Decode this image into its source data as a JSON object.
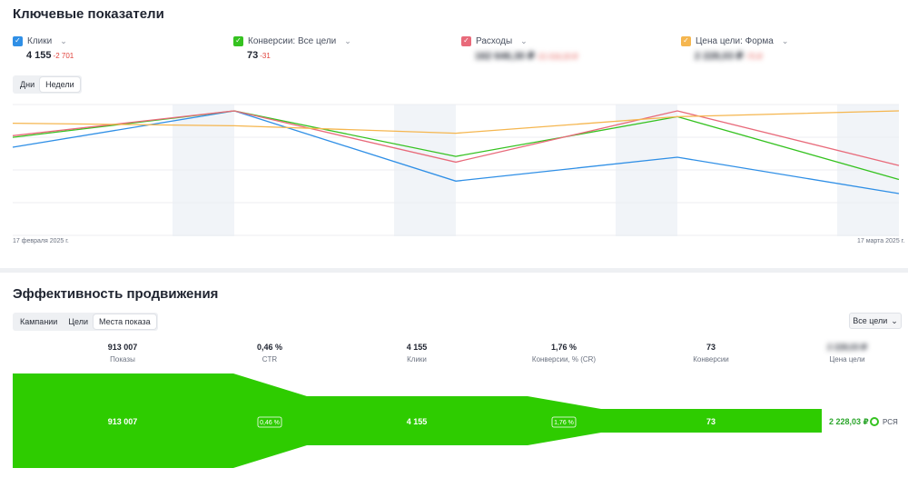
{
  "key_metrics": {
    "title": "Ключевые показатели",
    "metrics": [
      {
        "label": "Клики",
        "value": "4 155",
        "delta": "-2 701",
        "color": "#2f8fe6",
        "blurred": false
      },
      {
        "label": "Конверсии: Все цели",
        "value": "73",
        "delta": "-31",
        "color": "#35c220",
        "blurred": false
      },
      {
        "label": "Расходы",
        "value": "162 646,30 ₽",
        "delta": "-21 016,20 ₽",
        "color": "#e86a7a",
        "blurred": true
      },
      {
        "label": "Цена цели: Форма",
        "value": "2 228,03 ₽",
        "delta": "-75 ₽",
        "color": "#f5b64f",
        "blurred": true
      }
    ],
    "period_toggle": [
      {
        "label": "Дни",
        "active": false
      },
      {
        "label": "Недели",
        "active": true
      }
    ]
  },
  "chart_data": {
    "type": "line",
    "x": [
      "2025-02-17",
      "2025-02-24",
      "2025-03-03",
      "2025-03-10",
      "2025-03-17"
    ],
    "x_tick_labels": {
      "start": "17 февраля 2025 г.",
      "end": "17 марта 2025 г."
    },
    "series": [
      {
        "name": "Клики",
        "color": "#2f8fe6",
        "values": [
          0.44,
          0.0,
          0.85,
          0.56,
          1.0
        ]
      },
      {
        "name": "Конверсии: Все цели",
        "color": "#35c220",
        "values": [
          0.32,
          0.0,
          0.55,
          0.07,
          0.83
        ]
      },
      {
        "name": "Расходы",
        "color": "#e86a7a",
        "values": [
          0.3,
          0.0,
          0.62,
          0.0,
          0.66
        ]
      },
      {
        "name": "Цена цели: Форма",
        "color": "#f5b64f",
        "values": [
          0.15,
          0.18,
          0.27,
          0.07,
          0.0
        ]
      }
    ],
    "grid": true
  },
  "promotion": {
    "title": "Эффективность продвижения",
    "tabs": [
      {
        "label": "Кампании",
        "active": false
      },
      {
        "label": "Цели",
        "active": false
      },
      {
        "label": "Места показа",
        "active": true
      }
    ],
    "goal_filter": "Все цели",
    "stats": [
      {
        "value": "913 007",
        "label": "Показы",
        "blurred": false
      },
      {
        "value": "0,46 %",
        "label": "CTR",
        "blurred": false
      },
      {
        "value": "4 155",
        "label": "Клики",
        "blurred": false
      },
      {
        "value": "1,76 %",
        "label": "Конверсии, % (CR)",
        "blurred": false
      },
      {
        "value": "73",
        "label": "Конверсии",
        "blurred": false
      },
      {
        "value": "2 228,03 ₽",
        "label": "Цена цели",
        "blurred": true
      }
    ],
    "funnel": {
      "color": "#2ecc00",
      "impressions": "913 007",
      "ctr": "0,46 %",
      "clicks": "4 155",
      "cr": "1,76 %",
      "conversions": "73",
      "goal_price": "2 228,03 ₽"
    },
    "legend_label": "РСЯ"
  }
}
